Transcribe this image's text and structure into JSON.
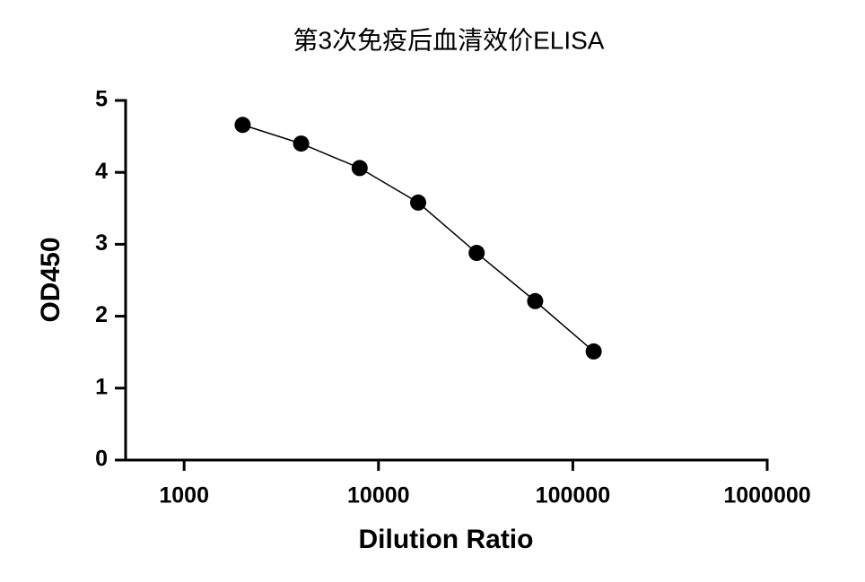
{
  "chart_data": {
    "type": "line",
    "title": "第3次免疫后血清效价ELISA",
    "xlabel": "Dilution Ratio",
    "ylabel": "OD450",
    "x": [
      2000,
      4000,
      8000,
      16000,
      32000,
      64000,
      128000
    ],
    "series": [
      {
        "color": "#000000",
        "values": [
          4.66,
          4.4,
          4.06,
          3.58,
          2.88,
          2.21,
          1.51
        ]
      }
    ],
    "xscale": "log",
    "xlim": [
      500,
      1000000
    ],
    "xticks": [
      1000,
      10000,
      100000,
      1000000
    ],
    "ylim": [
      0,
      5
    ],
    "yticks": [
      0,
      1,
      2,
      3,
      4,
      5
    ],
    "grid": false,
    "markers": true
  }
}
